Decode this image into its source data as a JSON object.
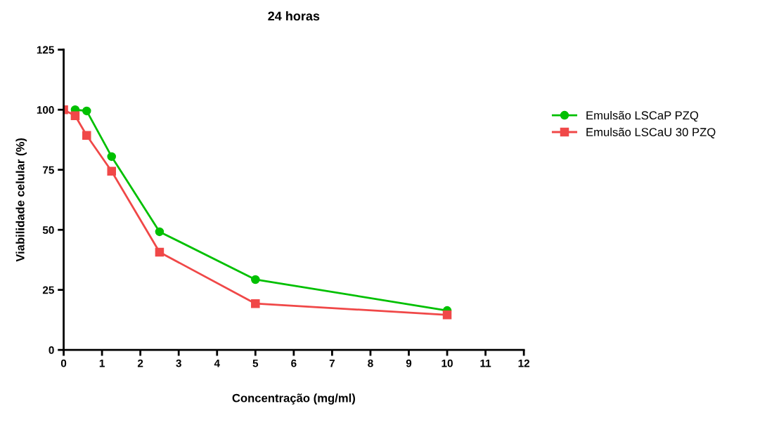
{
  "chart_data": {
    "type": "line",
    "title": "24 horas",
    "xlabel": "Concentração (mg/ml)",
    "ylabel": "Viabilidade celular (%)",
    "xlim": [
      0,
      12
    ],
    "xticks": [
      0,
      1,
      2,
      3,
      4,
      5,
      6,
      7,
      8,
      9,
      10,
      11,
      12
    ],
    "ylim": [
      0,
      125
    ],
    "yticks": [
      0,
      25,
      50,
      75,
      100,
      125
    ],
    "grid": false,
    "legend": "right",
    "line_style": "solid",
    "series": [
      {
        "name": "Emulsão LSCaP PZQ",
        "color": "#00c000",
        "marker": "circle",
        "x": [
          0.3,
          0.6,
          1.25,
          2.5,
          5,
          10
        ],
        "values": [
          100,
          99.5,
          80.5,
          49.2,
          29.3,
          16.4
        ]
      },
      {
        "name": "Emulsão LSCaU 30 PZQ",
        "color": "#f04848",
        "marker": "square",
        "x": [
          0,
          0.3,
          0.6,
          1.25,
          2.5,
          5,
          10
        ],
        "values": [
          100,
          97.5,
          89.3,
          74.4,
          40.7,
          19.3,
          14.6
        ]
      }
    ]
  }
}
